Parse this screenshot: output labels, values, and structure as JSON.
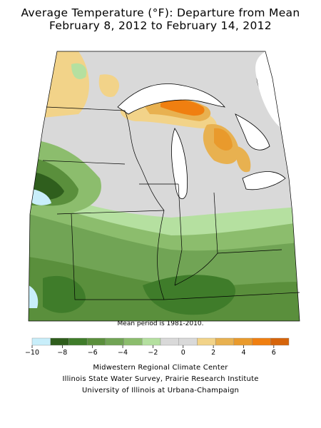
{
  "title": {
    "line1": "Average Temperature (°F): Departure from Mean",
    "line2": "February 8, 2012 to February 14, 2012"
  },
  "map": {
    "region": "Midwest",
    "border_color": "#000000",
    "water_color": "#ffffff",
    "note": "Mean period is 1981-2010."
  },
  "legend": {
    "colors": [
      "#c8eefa",
      "#2f5e1d",
      "#3f7c2a",
      "#5a8f3c",
      "#71a455",
      "#8cbd6d",
      "#b5e0a0",
      "#d9d9d9",
      "#d9d9d9",
      "#f2d389",
      "#e8b150",
      "#e99a2c",
      "#f07f10",
      "#d6640a"
    ],
    "tick_labels": [
      "−10",
      "−8",
      "−6",
      "−4",
      "−2",
      "0",
      "2",
      "4",
      "6"
    ],
    "tick_values": [
      -10,
      -8,
      -6,
      -4,
      -2,
      0,
      2,
      4,
      6
    ],
    "min": -10,
    "max": 7
  },
  "credits": {
    "line1": "Midwestern Regional Climate Center",
    "line2": "Illinois State Water Survey, Prairie Research Institute",
    "line3": "University of Illinois at Urbana-Champaign"
  }
}
